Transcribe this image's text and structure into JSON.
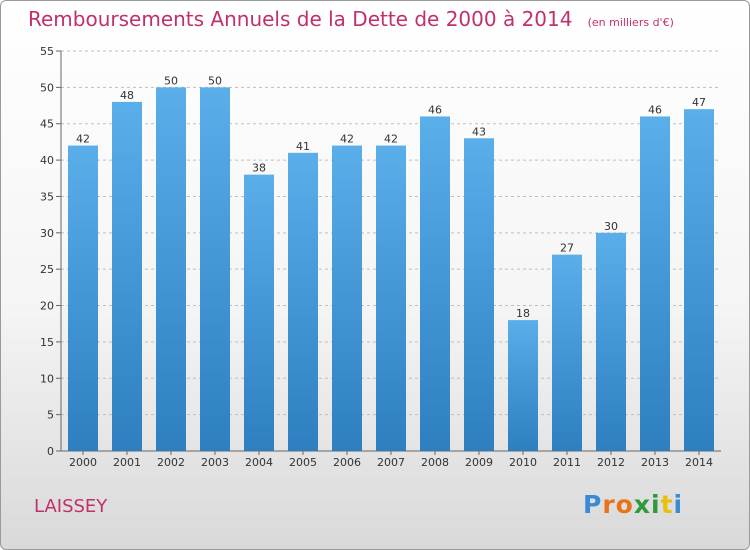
{
  "title": "Remboursements Annuels de la Dette de 2000 à 2014",
  "subtitle": "(en milliers d'€)",
  "commune": "LAISSEY",
  "logo_text": "Proxiti",
  "colors": {
    "title": "#c0306e",
    "bar_top": "#5aaeea",
    "bar_bottom": "#2d7fc0",
    "grid": "#bfbfbf"
  },
  "chart_data": {
    "type": "bar",
    "title": "Remboursements Annuels de la Dette de 2000 à 2014",
    "subtitle": "(en milliers d'€)",
    "categories": [
      "2000",
      "2001",
      "2002",
      "2003",
      "2004",
      "2005",
      "2006",
      "2007",
      "2008",
      "2009",
      "2010",
      "2011",
      "2012",
      "2013",
      "2014"
    ],
    "values": [
      42,
      48,
      50,
      50,
      38,
      41,
      42,
      42,
      46,
      43,
      18,
      27,
      30,
      46,
      47
    ],
    "ylim": [
      0,
      55
    ],
    "yticks": [
      0,
      5,
      10,
      15,
      20,
      25,
      30,
      35,
      40,
      45,
      50,
      55
    ],
    "grid": "horizontal dashed",
    "data_labels": true,
    "legend": "none"
  }
}
